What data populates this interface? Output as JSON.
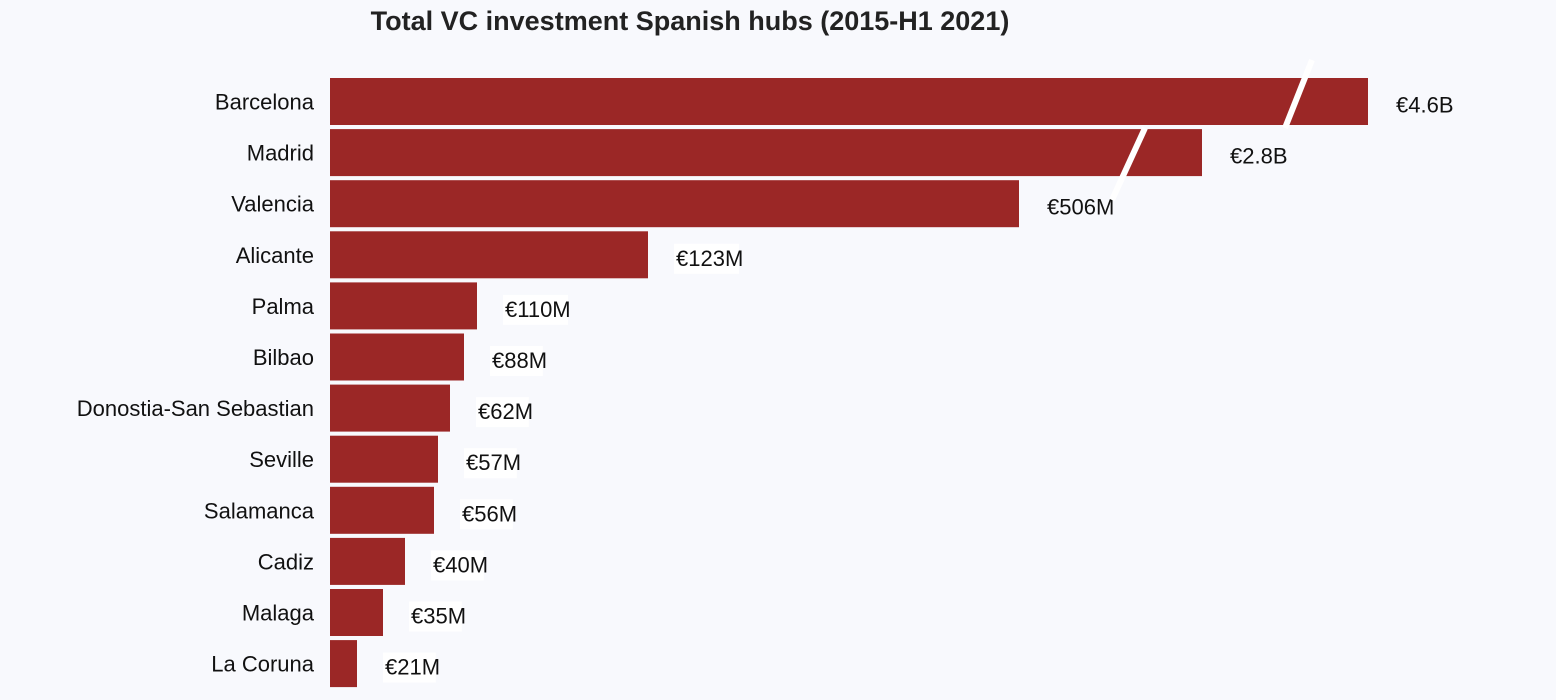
{
  "chart_data": {
    "type": "bar",
    "orientation": "horizontal",
    "title": "Total VC investment Spanish hubs (2015-H1 2021)",
    "xlabel": "",
    "ylabel": "",
    "unit": "EUR millions",
    "axis_break": true,
    "grid": false,
    "categories": [
      "Barcelona",
      "Madrid",
      "Valencia",
      "Alicante",
      "Palma",
      "Bilbao",
      "Donostia-San Sebastian",
      "Seville",
      "Salamanca",
      "Cadiz",
      "Malaga",
      "La Coruna"
    ],
    "values": [
      4600,
      2800,
      506,
      123,
      110,
      88,
      62,
      57,
      56,
      40,
      35,
      21
    ],
    "labels": [
      "€4.6B",
      "€2.8B",
      "€506M",
      "€123M",
      "€110M",
      "€88M",
      "€62M",
      "€57M",
      "€56M",
      "€40M",
      "€35M",
      "€21M"
    ],
    "colors": {
      "bar": "#9b2726",
      "background": "#f8f9fd",
      "break": "#ffffff"
    }
  }
}
